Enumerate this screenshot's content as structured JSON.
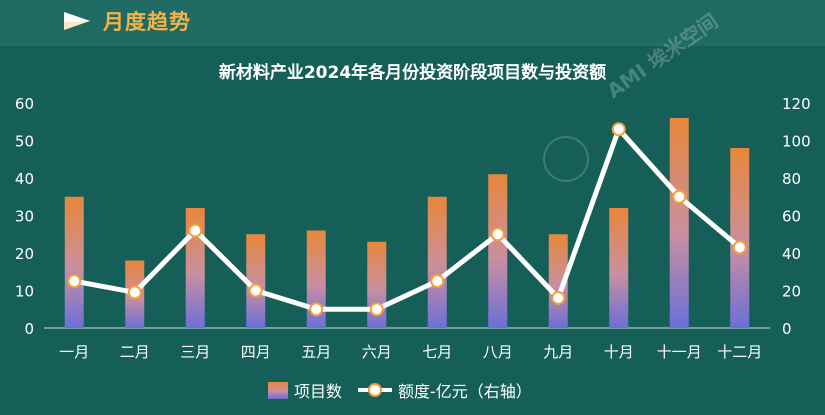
{
  "header": {
    "section_title": "月度趋势",
    "flag_icon": "flag-icon"
  },
  "watermark": "AMI 埃米空间",
  "chart_data": {
    "type": "bar+line",
    "title": "新材料产业2024年各月份投资阶段项目数与投资额",
    "categories": [
      "一月",
      "二月",
      "三月",
      "四月",
      "五月",
      "六月",
      "七月",
      "八月",
      "九月",
      "十月",
      "十一月",
      "十二月"
    ],
    "series": [
      {
        "name": "项目数",
        "type": "bar",
        "axis": "left",
        "values": [
          35,
          18,
          32,
          25,
          26,
          23,
          35,
          41,
          25,
          32,
          56,
          48
        ]
      },
      {
        "name": "额度-亿元（右轴）",
        "type": "line",
        "axis": "right",
        "values": [
          25,
          19,
          52,
          20,
          10,
          10,
          25,
          50,
          16,
          106,
          70,
          43
        ]
      }
    ],
    "y_left": {
      "min": 0,
      "max": 60,
      "ticks": [
        "0",
        "10",
        "20",
        "30",
        "40",
        "50",
        "60"
      ]
    },
    "y_right": {
      "min": 0,
      "max": 120,
      "ticks": [
        "0",
        "20",
        "40",
        "60",
        "80",
        "100",
        "120"
      ]
    },
    "legend": {
      "position": "bottom-center",
      "bar_label": "项目数",
      "line_label": "额度-亿元（右轴）"
    },
    "colors": {
      "bar_top": "#e8873a",
      "bar_mid": "#c98fa0",
      "bar_bottom": "#6b6fd8",
      "line": "#ffffff",
      "marker_fill": "#ffffff",
      "marker_stroke": "#f2a23a"
    }
  }
}
